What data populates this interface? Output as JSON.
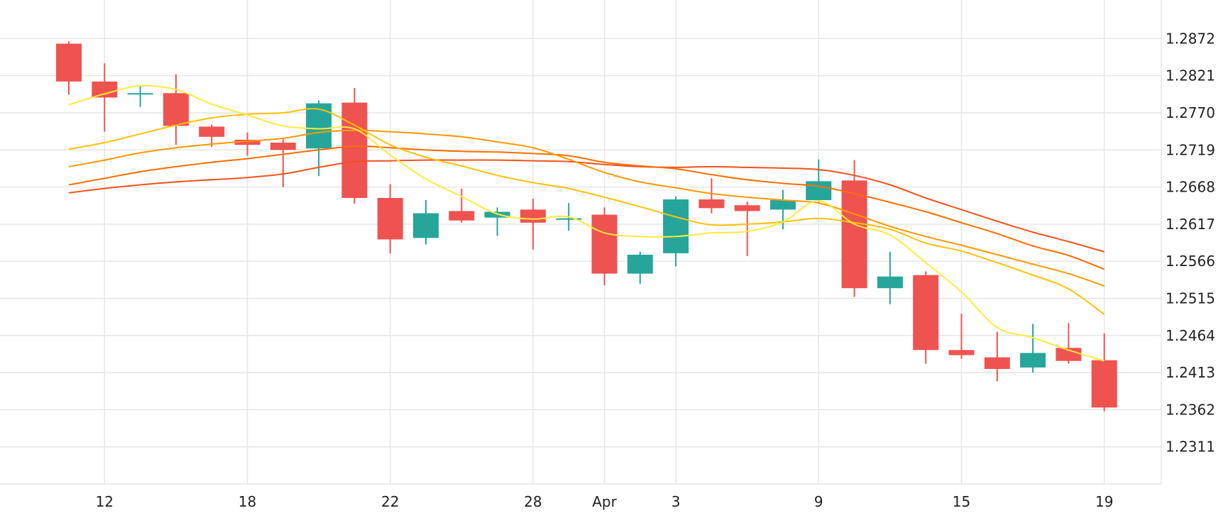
{
  "chart_data": {
    "type": "candlestick",
    "title": "",
    "xlabel": "",
    "ylabel": "",
    "ylim": [
      1.226,
      1.2925
    ],
    "y_ticks": [
      "1.2872",
      "1.2821",
      "1.2770",
      "1.2719",
      "1.2668",
      "1.2617",
      "1.2566",
      "1.2515",
      "1.2464",
      "1.2413",
      "1.2362",
      "1.2311"
    ],
    "x_ticks": [
      {
        "label": "12",
        "slot": 1
      },
      {
        "label": "18",
        "slot": 5
      },
      {
        "label": "22",
        "slot": 9
      },
      {
        "label": "28",
        "slot": 13
      },
      {
        "label": "Apr",
        "slot": 15
      },
      {
        "label": "3",
        "slot": 17
      },
      {
        "label": "9",
        "slot": 21
      },
      {
        "label": "15",
        "slot": 25
      },
      {
        "label": "19",
        "slot": 29
      }
    ],
    "grid": true,
    "up_color": "#26a69a",
    "down_color": "#ef5350",
    "candles": [
      {
        "slot": 0,
        "open": 1.2865,
        "high": 1.2868,
        "low": 1.2795,
        "close": 1.2813
      },
      {
        "slot": 1,
        "open": 1.2813,
        "high": 1.2838,
        "low": 1.2744,
        "close": 1.2791
      },
      {
        "slot": 2,
        "open": 1.2797,
        "high": 1.2807,
        "low": 1.2778,
        "close": 1.2797
      },
      {
        "slot": 3,
        "open": 1.2797,
        "high": 1.2823,
        "low": 1.2726,
        "close": 1.2752
      },
      {
        "slot": 4,
        "open": 1.2751,
        "high": 1.2754,
        "low": 1.2723,
        "close": 1.2737
      },
      {
        "slot": 5,
        "open": 1.2733,
        "high": 1.2743,
        "low": 1.2711,
        "close": 1.2726
      },
      {
        "slot": 6,
        "open": 1.2729,
        "high": 1.2734,
        "low": 1.2668,
        "close": 1.2719
      },
      {
        "slot": 7,
        "open": 1.2721,
        "high": 1.2787,
        "low": 1.2683,
        "close": 1.2783
      },
      {
        "slot": 8,
        "open": 1.2784,
        "high": 1.2804,
        "low": 1.2645,
        "close": 1.2653
      },
      {
        "slot": 9,
        "open": 1.2653,
        "high": 1.2672,
        "low": 1.2577,
        "close": 1.2596
      },
      {
        "slot": 10,
        "open": 1.2598,
        "high": 1.265,
        "low": 1.2589,
        "close": 1.2632
      },
      {
        "slot": 11,
        "open": 1.2635,
        "high": 1.2666,
        "low": 1.2619,
        "close": 1.2622
      },
      {
        "slot": 12,
        "open": 1.2626,
        "high": 1.264,
        "low": 1.2601,
        "close": 1.2634
      },
      {
        "slot": 13,
        "open": 1.2637,
        "high": 1.2652,
        "low": 1.2582,
        "close": 1.2619
      },
      {
        "slot": 14,
        "open": 1.2623,
        "high": 1.2646,
        "low": 1.2608,
        "close": 1.2625
      },
      {
        "slot": 15,
        "open": 1.263,
        "high": 1.264,
        "low": 1.2533,
        "close": 1.2549
      },
      {
        "slot": 16,
        "open": 1.2549,
        "high": 1.2579,
        "low": 1.2535,
        "close": 1.2575
      },
      {
        "slot": 17,
        "open": 1.2577,
        "high": 1.2655,
        "low": 1.2559,
        "close": 1.2651
      },
      {
        "slot": 18,
        "open": 1.2651,
        "high": 1.268,
        "low": 1.2632,
        "close": 1.2639
      },
      {
        "slot": 19,
        "open": 1.2643,
        "high": 1.2648,
        "low": 1.2573,
        "close": 1.2635
      },
      {
        "slot": 20,
        "open": 1.2637,
        "high": 1.2664,
        "low": 1.261,
        "close": 1.265
      },
      {
        "slot": 21,
        "open": 1.265,
        "high": 1.2706,
        "low": 1.2645,
        "close": 1.2676
      },
      {
        "slot": 22,
        "open": 1.2677,
        "high": 1.2705,
        "low": 1.2517,
        "close": 1.2529
      },
      {
        "slot": 23,
        "open": 1.2529,
        "high": 1.2579,
        "low": 1.2507,
        "close": 1.2545
      },
      {
        "slot": 24,
        "open": 1.2547,
        "high": 1.2552,
        "low": 1.2425,
        "close": 1.2444
      },
      {
        "slot": 25,
        "open": 1.2444,
        "high": 1.2494,
        "low": 1.2432,
        "close": 1.2437
      },
      {
        "slot": 26,
        "open": 1.2434,
        "high": 1.2469,
        "low": 1.2401,
        "close": 1.2418
      },
      {
        "slot": 27,
        "open": 1.242,
        "high": 1.248,
        "low": 1.2413,
        "close": 1.244
      },
      {
        "slot": 28,
        "open": 1.2447,
        "high": 1.2481,
        "low": 1.2425,
        "close": 1.2429
      },
      {
        "slot": 29,
        "open": 1.243,
        "high": 1.2467,
        "low": 1.236,
        "close": 1.2365
      }
    ],
    "moving_averages": [
      {
        "color": "#ffeb3b",
        "values": [
          {
            "slot": 0,
            "value": 1.2781
          },
          {
            "slot": 1,
            "value": 1.2796
          },
          {
            "slot": 2,
            "value": 1.2807
          },
          {
            "slot": 3,
            "value": 1.2802
          },
          {
            "slot": 4,
            "value": 1.2782
          },
          {
            "slot": 5,
            "value": 1.2767
          },
          {
            "slot": 6,
            "value": 1.2752
          },
          {
            "slot": 7,
            "value": 1.2748
          },
          {
            "slot": 8,
            "value": 1.2748
          },
          {
            "slot": 9,
            "value": 1.2712
          },
          {
            "slot": 10,
            "value": 1.2679
          },
          {
            "slot": 11,
            "value": 1.2655
          },
          {
            "slot": 12,
            "value": 1.2631
          },
          {
            "slot": 13,
            "value": 1.2624
          },
          {
            "slot": 14,
            "value": 1.2627
          },
          {
            "slot": 15,
            "value": 1.2605
          },
          {
            "slot": 16,
            "value": 1.26
          },
          {
            "slot": 17,
            "value": 1.26
          },
          {
            "slot": 18,
            "value": 1.2605
          },
          {
            "slot": 19,
            "value": 1.2607
          },
          {
            "slot": 20,
            "value": 1.262
          },
          {
            "slot": 21,
            "value": 1.2649
          },
          {
            "slot": 22,
            "value": 1.2617
          },
          {
            "slot": 23,
            "value": 1.2602
          },
          {
            "slot": 24,
            "value": 1.2564
          },
          {
            "slot": 25,
            "value": 1.2524
          },
          {
            "slot": 26,
            "value": 1.2475
          },
          {
            "slot": 27,
            "value": 1.2461
          },
          {
            "slot": 28,
            "value": 1.2444
          },
          {
            "slot": 29,
            "value": 1.2429
          }
        ]
      },
      {
        "color": "#ffc107",
        "values": [
          {
            "slot": 0,
            "value": 1.272
          },
          {
            "slot": 1,
            "value": 1.2729
          },
          {
            "slot": 2,
            "value": 1.2741
          },
          {
            "slot": 3,
            "value": 1.2753
          },
          {
            "slot": 4,
            "value": 1.2763
          },
          {
            "slot": 5,
            "value": 1.2768
          },
          {
            "slot": 6,
            "value": 1.277
          },
          {
            "slot": 7,
            "value": 1.2775
          },
          {
            "slot": 8,
            "value": 1.2753
          },
          {
            "slot": 9,
            "value": 1.2726
          },
          {
            "slot": 10,
            "value": 1.2709
          },
          {
            "slot": 11,
            "value": 1.2697
          },
          {
            "slot": 12,
            "value": 1.2684
          },
          {
            "slot": 13,
            "value": 1.2674
          },
          {
            "slot": 14,
            "value": 1.2666
          },
          {
            "slot": 15,
            "value": 1.2654
          },
          {
            "slot": 16,
            "value": 1.2641
          },
          {
            "slot": 17,
            "value": 1.2627
          },
          {
            "slot": 18,
            "value": 1.2616
          },
          {
            "slot": 19,
            "value": 1.2617
          },
          {
            "slot": 20,
            "value": 1.262
          },
          {
            "slot": 21,
            "value": 1.2625
          },
          {
            "slot": 22,
            "value": 1.2619
          },
          {
            "slot": 23,
            "value": 1.261
          },
          {
            "slot": 24,
            "value": 1.2591
          },
          {
            "slot": 25,
            "value": 1.258
          },
          {
            "slot": 26,
            "value": 1.2564
          },
          {
            "slot": 27,
            "value": 1.2547
          },
          {
            "slot": 28,
            "value": 1.2528
          },
          {
            "slot": 29,
            "value": 1.2493
          }
        ]
      },
      {
        "color": "#ff9800",
        "values": [
          {
            "slot": 0,
            "value": 1.2696
          },
          {
            "slot": 1,
            "value": 1.2705
          },
          {
            "slot": 2,
            "value": 1.2715
          },
          {
            "slot": 3,
            "value": 1.2722
          },
          {
            "slot": 4,
            "value": 1.2727
          },
          {
            "slot": 5,
            "value": 1.2731
          },
          {
            "slot": 6,
            "value": 1.2735
          },
          {
            "slot": 7,
            "value": 1.2743
          },
          {
            "slot": 8,
            "value": 1.2746
          },
          {
            "slot": 9,
            "value": 1.2744
          },
          {
            "slot": 10,
            "value": 1.2741
          },
          {
            "slot": 11,
            "value": 1.2737
          },
          {
            "slot": 12,
            "value": 1.273
          },
          {
            "slot": 13,
            "value": 1.2722
          },
          {
            "slot": 14,
            "value": 1.2706
          },
          {
            "slot": 15,
            "value": 1.2688
          },
          {
            "slot": 16,
            "value": 1.2675
          },
          {
            "slot": 17,
            "value": 1.2667
          },
          {
            "slot": 18,
            "value": 1.2659
          },
          {
            "slot": 19,
            "value": 1.2654
          },
          {
            "slot": 20,
            "value": 1.265
          },
          {
            "slot": 21,
            "value": 1.2646
          },
          {
            "slot": 22,
            "value": 1.2631
          },
          {
            "slot": 23,
            "value": 1.2614
          },
          {
            "slot": 24,
            "value": 1.26
          },
          {
            "slot": 25,
            "value": 1.2588
          },
          {
            "slot": 26,
            "value": 1.2575
          },
          {
            "slot": 27,
            "value": 1.2562
          },
          {
            "slot": 28,
            "value": 1.2549
          },
          {
            "slot": 29,
            "value": 1.2532
          }
        ]
      },
      {
        "color": "#ff6d00",
        "values": [
          {
            "slot": 0,
            "value": 1.2671
          },
          {
            "slot": 1,
            "value": 1.268
          },
          {
            "slot": 2,
            "value": 1.2689
          },
          {
            "slot": 3,
            "value": 1.2696
          },
          {
            "slot": 4,
            "value": 1.2702
          },
          {
            "slot": 5,
            "value": 1.2707
          },
          {
            "slot": 6,
            "value": 1.2713
          },
          {
            "slot": 7,
            "value": 1.2719
          },
          {
            "slot": 8,
            "value": 1.2724
          },
          {
            "slot": 9,
            "value": 1.2722
          },
          {
            "slot": 10,
            "value": 1.2719
          },
          {
            "slot": 11,
            "value": 1.2717
          },
          {
            "slot": 12,
            "value": 1.2716
          },
          {
            "slot": 13,
            "value": 1.2714
          },
          {
            "slot": 14,
            "value": 1.2711
          },
          {
            "slot": 15,
            "value": 1.2702
          },
          {
            "slot": 16,
            "value": 1.2697
          },
          {
            "slot": 17,
            "value": 1.2693
          },
          {
            "slot": 18,
            "value": 1.2685
          },
          {
            "slot": 19,
            "value": 1.2678
          },
          {
            "slot": 20,
            "value": 1.2673
          },
          {
            "slot": 21,
            "value": 1.2669
          },
          {
            "slot": 22,
            "value": 1.2659
          },
          {
            "slot": 23,
            "value": 1.2647
          },
          {
            "slot": 24,
            "value": 1.2634
          },
          {
            "slot": 25,
            "value": 1.2619
          },
          {
            "slot": 26,
            "value": 1.2604
          },
          {
            "slot": 27,
            "value": 1.2587
          },
          {
            "slot": 28,
            "value": 1.2574
          },
          {
            "slot": 29,
            "value": 1.2555
          }
        ]
      },
      {
        "color": "#f4511e",
        "values": [
          {
            "slot": 0,
            "value": 1.266
          },
          {
            "slot": 1,
            "value": 1.2666
          },
          {
            "slot": 2,
            "value": 1.2671
          },
          {
            "slot": 3,
            "value": 1.2675
          },
          {
            "slot": 4,
            "value": 1.2678
          },
          {
            "slot": 5,
            "value": 1.2681
          },
          {
            "slot": 6,
            "value": 1.2686
          },
          {
            "slot": 7,
            "value": 1.2695
          },
          {
            "slot": 8,
            "value": 1.2703
          },
          {
            "slot": 9,
            "value": 1.2704
          },
          {
            "slot": 10,
            "value": 1.2705
          },
          {
            "slot": 11,
            "value": 1.2705
          },
          {
            "slot": 12,
            "value": 1.2705
          },
          {
            "slot": 13,
            "value": 1.2704
          },
          {
            "slot": 14,
            "value": 1.2703
          },
          {
            "slot": 15,
            "value": 1.2699
          },
          {
            "slot": 16,
            "value": 1.2696
          },
          {
            "slot": 17,
            "value": 1.2695
          },
          {
            "slot": 18,
            "value": 1.2696
          },
          {
            "slot": 19,
            "value": 1.2695
          },
          {
            "slot": 20,
            "value": 1.2694
          },
          {
            "slot": 21,
            "value": 1.2692
          },
          {
            "slot": 22,
            "value": 1.2684
          },
          {
            "slot": 23,
            "value": 1.2671
          },
          {
            "slot": 24,
            "value": 1.2653
          },
          {
            "slot": 25,
            "value": 1.2637
          },
          {
            "slot": 26,
            "value": 1.2621
          },
          {
            "slot": 27,
            "value": 1.2606
          },
          {
            "slot": 28,
            "value": 1.2593
          },
          {
            "slot": 29,
            "value": 1.2579
          }
        ]
      }
    ]
  }
}
